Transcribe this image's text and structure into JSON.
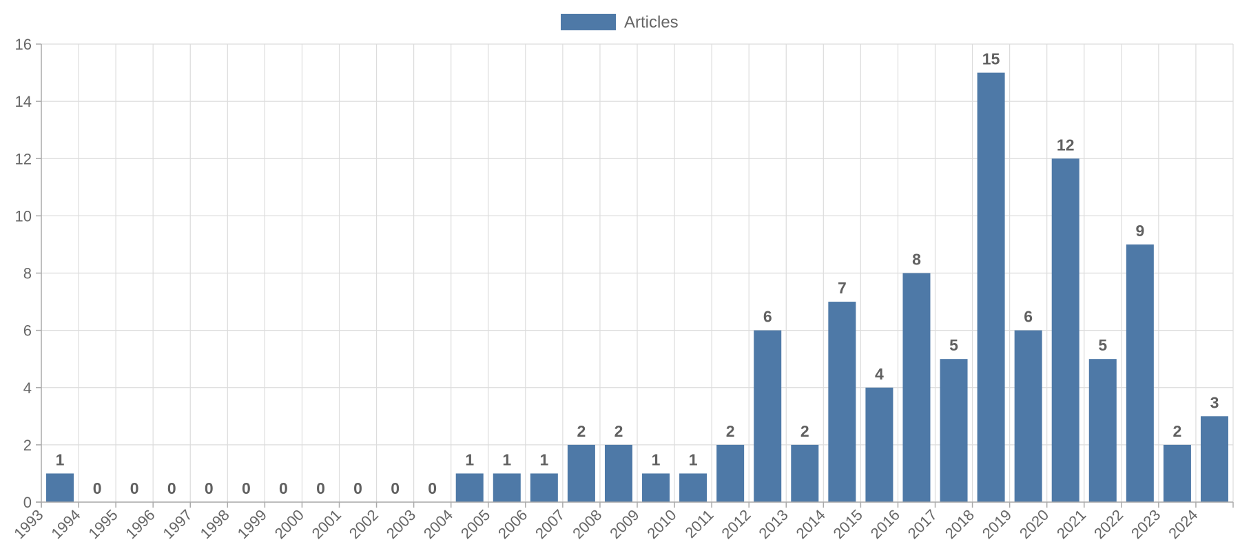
{
  "chart_data": {
    "type": "bar",
    "categories": [
      "1993",
      "1994",
      "1995",
      "1996",
      "1997",
      "1998",
      "1999",
      "2000",
      "2001",
      "2002",
      "2003",
      "2004",
      "2005",
      "2006",
      "2007",
      "2008",
      "2009",
      "2010",
      "2011",
      "2012",
      "2013",
      "2014",
      "2015",
      "2016",
      "2017",
      "2018",
      "2019",
      "2020",
      "2021",
      "2022",
      "2023",
      "2024"
    ],
    "series": [
      {
        "name": "Articles",
        "values": [
          1,
          0,
          0,
          0,
          0,
          0,
          0,
          0,
          0,
          0,
          0,
          1,
          1,
          1,
          2,
          2,
          1,
          1,
          2,
          6,
          2,
          7,
          4,
          8,
          5,
          15,
          6,
          12,
          5,
          9,
          2,
          3
        ],
        "color": "#4e79a7"
      }
    ],
    "ylim": [
      0,
      16
    ],
    "yticks": [
      0,
      2,
      4,
      6,
      8,
      10,
      12,
      14,
      16
    ],
    "grid": true,
    "legend_position": "top-center",
    "data_labels": true
  }
}
